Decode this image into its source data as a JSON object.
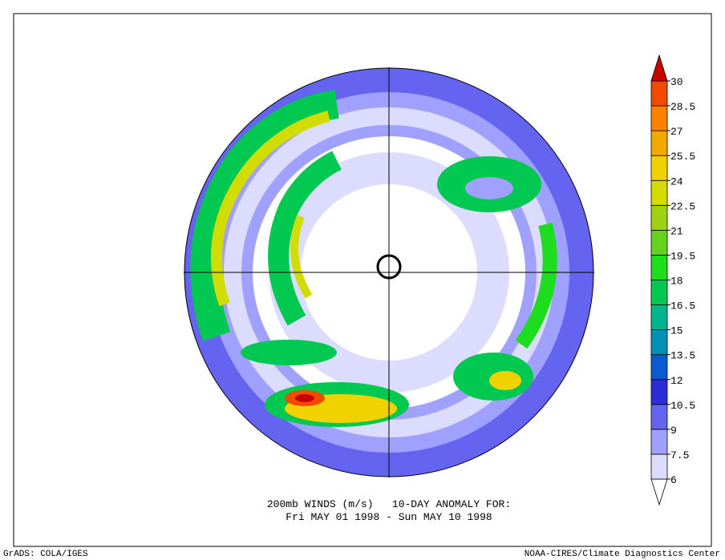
{
  "title_line1": "200mb WINDS (m/s)   10-DAY ANOMALY FOR:",
  "title_line2": "Fri MAY 01 1998 - Sun MAY 10 1998",
  "footer_left": "GrADS: COLA/IGES",
  "footer_right": "NOAA-CIRES/Climate Diagnostics Center",
  "colorbar": {
    "levels": [
      6,
      7.5,
      9,
      10.5,
      12,
      13.5,
      15,
      16.5,
      18,
      19.5,
      21,
      22.5,
      24,
      25.5,
      27,
      28.5,
      30
    ],
    "colors": [
      "#ffffff",
      "#dcdcff",
      "#a0a0ff",
      "#6464f0",
      "#2d2dd8",
      "#0a5ad2",
      "#0091b4",
      "#00b48c",
      "#00c850",
      "#1edc1e",
      "#64d21e",
      "#a0d214",
      "#d2dc00",
      "#f0d200",
      "#f0aa00",
      "#fa8200",
      "#f04b00",
      "#c80000"
    ]
  }
}
